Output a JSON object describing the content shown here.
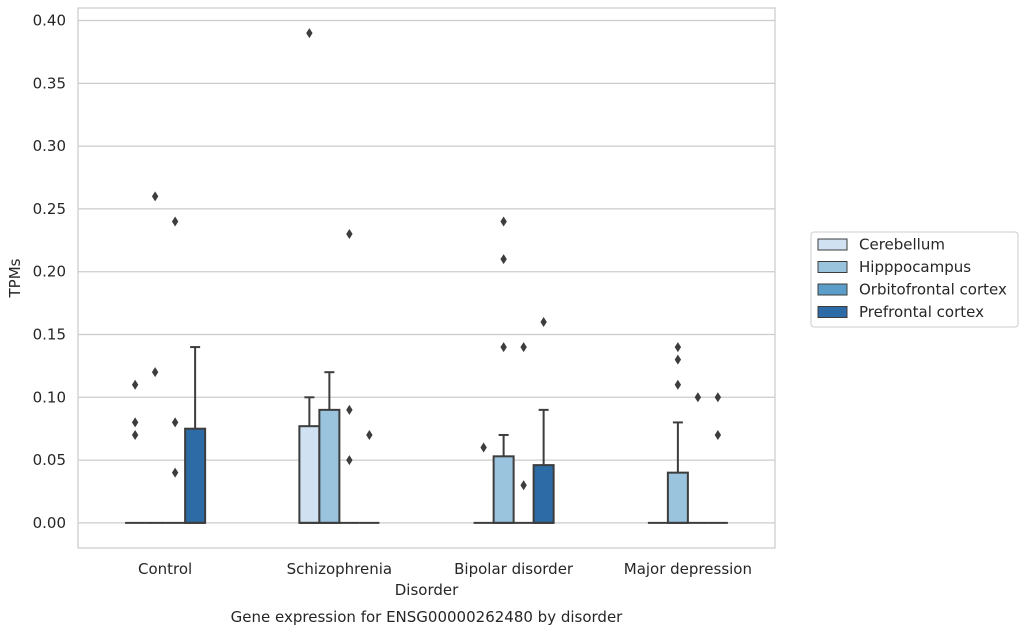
{
  "chart_data": {
    "type": "box",
    "xlabel": "Disorder",
    "ylabel": "TPMs",
    "caption": "Gene expression for ENSG00000262480 by disorder",
    "categories": [
      "Control",
      "Schizophrenia",
      "Bipolar disorder",
      "Major depression"
    ],
    "ylim": [
      -0.02,
      0.41
    ],
    "yticks": [
      "0.00",
      "0.05",
      "0.10",
      "0.15",
      "0.20",
      "0.25",
      "0.30",
      "0.35",
      "0.40"
    ],
    "grid": "horizontal",
    "legend_position": "right",
    "series": [
      {
        "name": "Cerebellum",
        "color": "#d0e1f1",
        "boxes": [
          {
            "q1": 0,
            "median": 0,
            "q3": 0,
            "whisker_low": 0,
            "whisker_high": 0,
            "outliers": [
              0.07,
              0.08,
              0.11
            ]
          },
          {
            "q1": 0,
            "median": 0,
            "q3": 0.077,
            "whisker_low": 0,
            "whisker_high": 0.1,
            "outliers": [
              0.39
            ]
          },
          {
            "q1": 0,
            "median": 0,
            "q3": 0,
            "whisker_low": 0,
            "whisker_high": 0,
            "outliers": [
              0.06
            ]
          },
          {
            "q1": 0,
            "median": 0,
            "q3": 0,
            "whisker_low": 0,
            "whisker_high": 0,
            "outliers": []
          }
        ]
      },
      {
        "name": "Hipppocampus",
        "color": "#9ac4dd",
        "boxes": [
          {
            "q1": 0,
            "median": 0,
            "q3": 0,
            "whisker_low": 0,
            "whisker_high": 0,
            "outliers": [
              0.12,
              0.26
            ]
          },
          {
            "q1": 0,
            "median": 0,
            "q3": 0.09,
            "whisker_low": 0,
            "whisker_high": 0.12,
            "outliers": []
          },
          {
            "q1": 0,
            "median": 0,
            "q3": 0.053,
            "whisker_low": 0,
            "whisker_high": 0.07,
            "outliers": [
              0.14,
              0.21,
              0.24
            ]
          },
          {
            "q1": 0,
            "median": 0,
            "q3": 0.04,
            "whisker_low": 0,
            "whisker_high": 0.08,
            "outliers": [
              0.11,
              0.13,
              0.14
            ]
          }
        ]
      },
      {
        "name": "Orbitofrontal cortex",
        "color": "#5a9ec9",
        "boxes": [
          {
            "q1": 0,
            "median": 0,
            "q3": 0,
            "whisker_low": 0,
            "whisker_high": 0,
            "outliers": [
              0.04,
              0.08,
              0.24
            ]
          },
          {
            "q1": 0,
            "median": 0,
            "q3": 0,
            "whisker_low": 0,
            "whisker_high": 0,
            "outliers": [
              0.05,
              0.09,
              0.23
            ]
          },
          {
            "q1": 0,
            "median": 0,
            "q3": 0,
            "whisker_low": 0,
            "whisker_high": 0,
            "outliers": [
              0.03,
              0.14
            ]
          },
          {
            "q1": 0,
            "median": 0,
            "q3": 0,
            "whisker_low": 0,
            "whisker_high": 0,
            "outliers": [
              0.1
            ]
          }
        ]
      },
      {
        "name": "Prefrontal cortex",
        "color": "#2c6ba6",
        "boxes": [
          {
            "q1": 0,
            "median": 0,
            "q3": 0.075,
            "whisker_low": 0,
            "whisker_high": 0.14,
            "outliers": []
          },
          {
            "q1": 0,
            "median": 0,
            "q3": 0,
            "whisker_low": 0,
            "whisker_high": 0,
            "outliers": [
              0.07
            ]
          },
          {
            "q1": 0,
            "median": 0,
            "q3": 0.046,
            "whisker_low": 0,
            "whisker_high": 0.09,
            "outliers": [
              0.16
            ]
          },
          {
            "q1": 0,
            "median": 0,
            "q3": 0,
            "whisker_low": 0,
            "whisker_high": 0,
            "outliers": [
              0.07,
              0.1
            ]
          }
        ]
      }
    ]
  }
}
